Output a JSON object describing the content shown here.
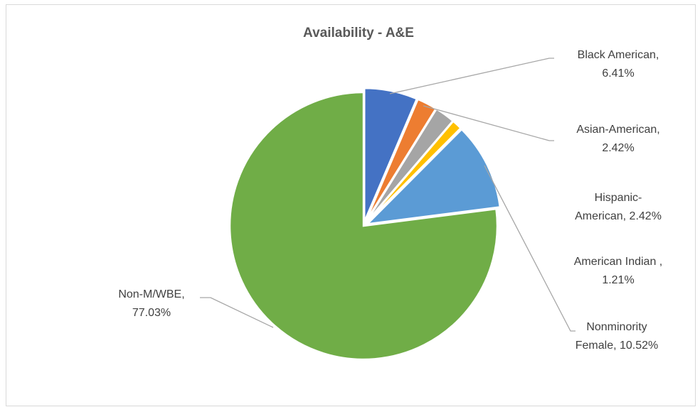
{
  "chart_data": {
    "type": "pie",
    "title": "Availability - A&E",
    "slices": [
      {
        "name": "Black American",
        "value": 6.41,
        "color": "#4472C4",
        "label_lines": [
          "Black American,",
          "6.41%"
        ]
      },
      {
        "name": "Asian-American",
        "value": 2.42,
        "color": "#ED7D31",
        "label_lines": [
          "Asian-American,",
          "2.42%"
        ]
      },
      {
        "name": "Hispanic-American",
        "value": 2.42,
        "color": "#A5A5A5",
        "label_lines": [
          "Hispanic-",
          "American, 2.42%"
        ]
      },
      {
        "name": "American Indian",
        "value": 1.21,
        "color": "#FFC000",
        "label_lines": [
          "American Indian ,",
          "1.21%"
        ]
      },
      {
        "name": "Nonminority Female",
        "value": 10.52,
        "color": "#5B9BD5",
        "label_lines": [
          "Nonminority",
          "Female, 10.52%"
        ]
      },
      {
        "name": "Non-M/WBE",
        "value": 77.03,
        "color": "#70AD47",
        "label_lines": [
          "Non-M/WBE,",
          "77.03%"
        ]
      }
    ]
  }
}
